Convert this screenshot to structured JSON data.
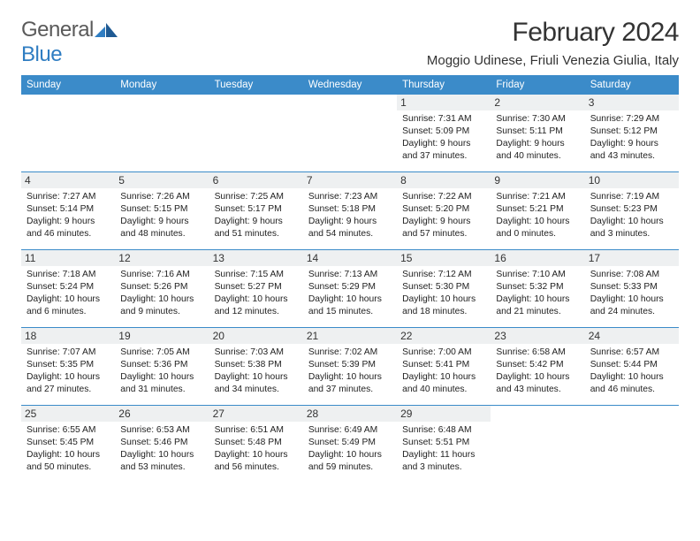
{
  "brand": {
    "name_part1": "General",
    "name_part2": "Blue"
  },
  "title": "February 2024",
  "location": "Moggio Udinese, Friuli Venezia Giulia, Italy",
  "colors": {
    "header_bg": "#3b8bc9",
    "header_text": "#ffffff",
    "daynum_bg": "#eef0f1",
    "border": "#3b8bc9",
    "brand_gray": "#5a5a5a",
    "brand_blue": "#2f7dc2"
  },
  "typography": {
    "title_fontsize_pt": 22,
    "location_fontsize_pt": 11,
    "dayhead_fontsize_pt": 9,
    "body_fontsize_pt": 8
  },
  "day_headers": [
    "Sunday",
    "Monday",
    "Tuesday",
    "Wednesday",
    "Thursday",
    "Friday",
    "Saturday"
  ],
  "weeks": [
    [
      {
        "n": "",
        "empty": true
      },
      {
        "n": "",
        "empty": true
      },
      {
        "n": "",
        "empty": true
      },
      {
        "n": "",
        "empty": true
      },
      {
        "n": "1",
        "sunrise": "7:31 AM",
        "sunset": "5:09 PM",
        "day_h": 9,
        "day_m": 37
      },
      {
        "n": "2",
        "sunrise": "7:30 AM",
        "sunset": "5:11 PM",
        "day_h": 9,
        "day_m": 40
      },
      {
        "n": "3",
        "sunrise": "7:29 AM",
        "sunset": "5:12 PM",
        "day_h": 9,
        "day_m": 43
      }
    ],
    [
      {
        "n": "4",
        "sunrise": "7:27 AM",
        "sunset": "5:14 PM",
        "day_h": 9,
        "day_m": 46
      },
      {
        "n": "5",
        "sunrise": "7:26 AM",
        "sunset": "5:15 PM",
        "day_h": 9,
        "day_m": 48
      },
      {
        "n": "6",
        "sunrise": "7:25 AM",
        "sunset": "5:17 PM",
        "day_h": 9,
        "day_m": 51
      },
      {
        "n": "7",
        "sunrise": "7:23 AM",
        "sunset": "5:18 PM",
        "day_h": 9,
        "day_m": 54
      },
      {
        "n": "8",
        "sunrise": "7:22 AM",
        "sunset": "5:20 PM",
        "day_h": 9,
        "day_m": 57
      },
      {
        "n": "9",
        "sunrise": "7:21 AM",
        "sunset": "5:21 PM",
        "day_h": 10,
        "day_m": 0
      },
      {
        "n": "10",
        "sunrise": "7:19 AM",
        "sunset": "5:23 PM",
        "day_h": 10,
        "day_m": 3
      }
    ],
    [
      {
        "n": "11",
        "sunrise": "7:18 AM",
        "sunset": "5:24 PM",
        "day_h": 10,
        "day_m": 6
      },
      {
        "n": "12",
        "sunrise": "7:16 AM",
        "sunset": "5:26 PM",
        "day_h": 10,
        "day_m": 9
      },
      {
        "n": "13",
        "sunrise": "7:15 AM",
        "sunset": "5:27 PM",
        "day_h": 10,
        "day_m": 12
      },
      {
        "n": "14",
        "sunrise": "7:13 AM",
        "sunset": "5:29 PM",
        "day_h": 10,
        "day_m": 15
      },
      {
        "n": "15",
        "sunrise": "7:12 AM",
        "sunset": "5:30 PM",
        "day_h": 10,
        "day_m": 18
      },
      {
        "n": "16",
        "sunrise": "7:10 AM",
        "sunset": "5:32 PM",
        "day_h": 10,
        "day_m": 21
      },
      {
        "n": "17",
        "sunrise": "7:08 AM",
        "sunset": "5:33 PM",
        "day_h": 10,
        "day_m": 24
      }
    ],
    [
      {
        "n": "18",
        "sunrise": "7:07 AM",
        "sunset": "5:35 PM",
        "day_h": 10,
        "day_m": 27
      },
      {
        "n": "19",
        "sunrise": "7:05 AM",
        "sunset": "5:36 PM",
        "day_h": 10,
        "day_m": 31
      },
      {
        "n": "20",
        "sunrise": "7:03 AM",
        "sunset": "5:38 PM",
        "day_h": 10,
        "day_m": 34
      },
      {
        "n": "21",
        "sunrise": "7:02 AM",
        "sunset": "5:39 PM",
        "day_h": 10,
        "day_m": 37
      },
      {
        "n": "22",
        "sunrise": "7:00 AM",
        "sunset": "5:41 PM",
        "day_h": 10,
        "day_m": 40
      },
      {
        "n": "23",
        "sunrise": "6:58 AM",
        "sunset": "5:42 PM",
        "day_h": 10,
        "day_m": 43
      },
      {
        "n": "24",
        "sunrise": "6:57 AM",
        "sunset": "5:44 PM",
        "day_h": 10,
        "day_m": 46
      }
    ],
    [
      {
        "n": "25",
        "sunrise": "6:55 AM",
        "sunset": "5:45 PM",
        "day_h": 10,
        "day_m": 50
      },
      {
        "n": "26",
        "sunrise": "6:53 AM",
        "sunset": "5:46 PM",
        "day_h": 10,
        "day_m": 53
      },
      {
        "n": "27",
        "sunrise": "6:51 AM",
        "sunset": "5:48 PM",
        "day_h": 10,
        "day_m": 56
      },
      {
        "n": "28",
        "sunrise": "6:49 AM",
        "sunset": "5:49 PM",
        "day_h": 10,
        "day_m": 59
      },
      {
        "n": "29",
        "sunrise": "6:48 AM",
        "sunset": "5:51 PM",
        "day_h": 11,
        "day_m": 3
      },
      {
        "n": "",
        "empty": true
      },
      {
        "n": "",
        "empty": true
      }
    ]
  ],
  "labels": {
    "sunrise": "Sunrise:",
    "sunset": "Sunset:",
    "daylight": "Daylight:"
  }
}
